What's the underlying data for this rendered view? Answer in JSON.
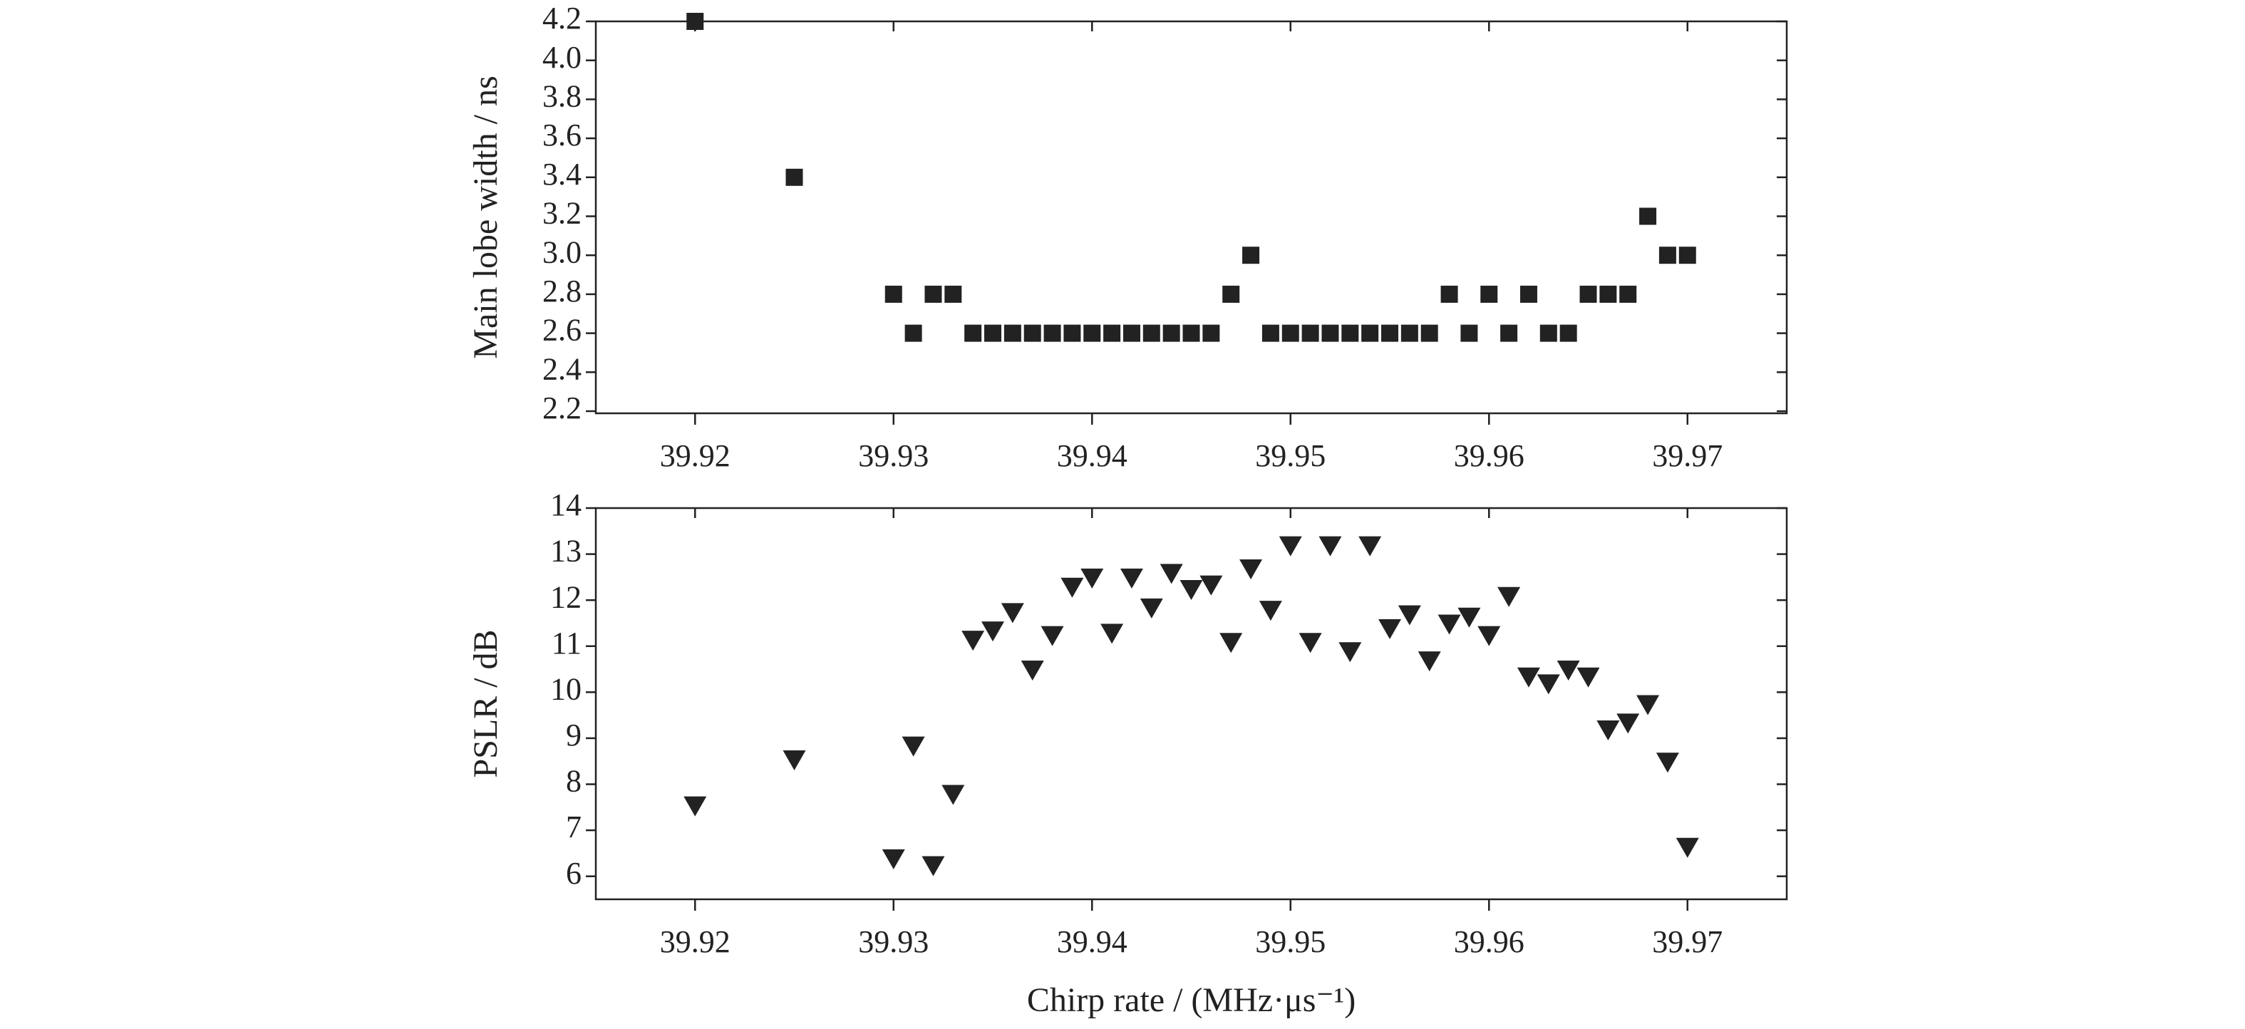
{
  "chart_data": [
    {
      "type": "scatter",
      "ylabel": "Main lobe width / ns",
      "marker": "square",
      "color": "#222222",
      "x": [
        39.92,
        39.925,
        39.93,
        39.931,
        39.932,
        39.933,
        39.934,
        39.935,
        39.936,
        39.937,
        39.938,
        39.939,
        39.94,
        39.941,
        39.942,
        39.943,
        39.944,
        39.945,
        39.946,
        39.947,
        39.948,
        39.949,
        39.95,
        39.951,
        39.952,
        39.953,
        39.954,
        39.955,
        39.956,
        39.957,
        39.958,
        39.959,
        39.96,
        39.961,
        39.962,
        39.963,
        39.964,
        39.965,
        39.966,
        39.967,
        39.968,
        39.969,
        39.97
      ],
      "values": [
        4.2,
        3.4,
        2.8,
        2.6,
        2.8,
        2.8,
        2.6,
        2.6,
        2.6,
        2.6,
        2.6,
        2.6,
        2.6,
        2.6,
        2.6,
        2.6,
        2.6,
        2.6,
        2.6,
        2.8,
        3.0,
        2.6,
        2.6,
        2.6,
        2.6,
        2.6,
        2.6,
        2.6,
        2.6,
        2.6,
        2.8,
        2.6,
        2.8,
        2.6,
        2.8,
        2.6,
        2.6,
        2.8,
        2.8,
        2.8,
        3.2,
        3.0,
        3.0
      ],
      "xlim": [
        39.915,
        39.975
      ],
      "xticks": [
        39.92,
        39.93,
        39.94,
        39.95,
        39.96,
        39.97
      ],
      "ylim": [
        2.2,
        4.2
      ],
      "yticks": [
        2.2,
        2.4,
        2.6,
        2.8,
        {
          "value": 3,
          "label": "3.0"
        },
        3.2,
        3.4,
        3.6,
        3.8,
        {
          "value": 4,
          "label": "4.0"
        },
        4.2
      ]
    },
    {
      "type": "scatter",
      "ylabel": "PSLR / dB",
      "xlabel": "Chirp rate / (MHz·μs⁻¹)",
      "marker": "triangle-down",
      "color": "#222222",
      "x": [
        39.92,
        39.925,
        39.93,
        39.931,
        39.932,
        39.933,
        39.934,
        39.935,
        39.936,
        39.937,
        39.938,
        39.939,
        39.94,
        39.941,
        39.942,
        39.943,
        39.944,
        39.945,
        39.946,
        39.947,
        39.948,
        39.949,
        39.95,
        39.951,
        39.952,
        39.953,
        39.954,
        39.955,
        39.956,
        39.957,
        39.958,
        39.959,
        39.96,
        39.961,
        39.962,
        39.963,
        39.964,
        39.965,
        39.966,
        39.967,
        39.968,
        39.969,
        39.97
      ],
      "values": [
        7.55,
        8.55,
        6.4,
        8.85,
        6.25,
        7.8,
        11.15,
        11.35,
        11.75,
        10.5,
        11.25,
        12.3,
        12.5,
        11.3,
        12.5,
        11.85,
        12.6,
        12.25,
        12.35,
        11.1,
        12.7,
        11.8,
        13.2,
        11.1,
        13.2,
        10.9,
        13.2,
        11.4,
        11.7,
        10.7,
        11.5,
        11.65,
        11.25,
        12.1,
        10.35,
        10.2,
        10.5,
        10.35,
        9.2,
        9.35,
        9.75,
        8.5,
        6.65
      ],
      "xlim": [
        39.915,
        39.975
      ],
      "xticks": [
        39.92,
        39.93,
        39.94,
        39.95,
        39.96,
        39.97
      ],
      "ylim": [
        5.5,
        14
      ],
      "yticks": [
        6,
        7,
        8,
        9,
        10,
        11,
        12,
        13,
        14
      ]
    }
  ]
}
